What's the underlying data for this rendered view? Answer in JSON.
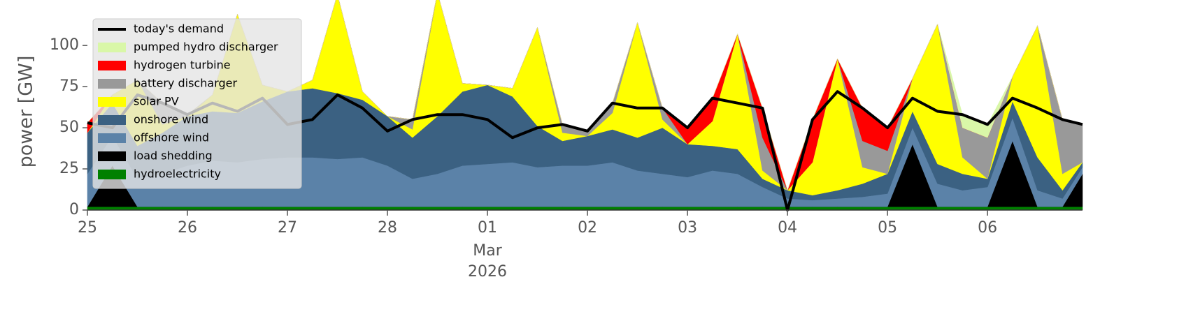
{
  "chart_data": {
    "type": "stacked_area",
    "ylabel": "power [GW]",
    "x": [
      0,
      0.25,
      0.5,
      0.75,
      1,
      1.25,
      1.5,
      1.75,
      2,
      2.25,
      2.5,
      2.75,
      3,
      3.25,
      3.5,
      3.75,
      4,
      4.25,
      4.5,
      4.75,
      5,
      5.25,
      5.5,
      5.75,
      6,
      6.25,
      6.5,
      6.75,
      7,
      7.25,
      7.5,
      7.75,
      8,
      8.25,
      8.5,
      8.75,
      9,
      9.25,
      9.5,
      9.75,
      9.95
    ],
    "xlim": [
      0,
      9.95
    ],
    "xticks": [
      {
        "value": 0,
        "label": "25"
      },
      {
        "value": 1,
        "label": "26"
      },
      {
        "value": 2,
        "label": "27"
      },
      {
        "value": 3,
        "label": "28"
      },
      {
        "value": 4,
        "label": "01"
      },
      {
        "value": 5,
        "label": "02"
      },
      {
        "value": 6,
        "label": "03"
      },
      {
        "value": 7,
        "label": "04"
      },
      {
        "value": 8,
        "label": "05"
      },
      {
        "value": 9,
        "label": "06"
      }
    ],
    "xtick_sublabels": [
      "Mar",
      "2026"
    ],
    "ylim": [
      0,
      120
    ],
    "yticks": [
      0,
      25,
      50,
      75,
      100
    ],
    "legend": "upper left",
    "line_series": {
      "name": "today's demand",
      "color": "#000000",
      "values": [
        53,
        50,
        70,
        65,
        58,
        65,
        60,
        68,
        52,
        55,
        70,
        62,
        48,
        55,
        58,
        58,
        55,
        44,
        50,
        52,
        48,
        65,
        62,
        62,
        50,
        68,
        65,
        62,
        0,
        55,
        72,
        62,
        50,
        68,
        60,
        58,
        52,
        68,
        62,
        55,
        52
      ]
    },
    "series": [
      {
        "name": "hydroelectricity",
        "color": "#008000",
        "values": [
          2,
          2,
          2,
          2,
          2,
          2,
          2,
          2,
          2,
          2,
          2,
          2,
          2,
          2,
          2,
          2,
          2,
          2,
          2,
          2,
          2,
          2,
          2,
          2,
          2,
          2,
          2,
          2,
          2,
          2,
          2,
          2,
          2,
          2,
          2,
          2,
          2,
          2,
          2,
          2,
          2
        ]
      },
      {
        "name": "load shedding",
        "color": "#000000",
        "values": [
          0,
          25,
          0,
          0,
          0,
          0,
          0,
          0,
          0,
          0,
          0,
          0,
          0,
          0,
          0,
          0,
          0,
          0,
          0,
          0,
          0,
          0,
          0,
          0,
          0,
          0,
          0,
          0,
          0,
          0,
          0,
          0,
          0,
          38,
          0,
          0,
          0,
          40,
          0,
          0,
          20
        ]
      },
      {
        "name": "offshore wind",
        "color": "#5b82a8",
        "values": [
          20,
          18,
          17,
          20,
          25,
          28,
          27,
          29,
          30,
          30,
          29,
          30,
          25,
          17,
          20,
          25,
          26,
          27,
          24,
          25,
          25,
          27,
          22,
          20,
          18,
          22,
          20,
          12,
          5,
          4,
          5,
          6,
          8,
          10,
          14,
          10,
          12,
          14,
          10,
          5,
          4
        ]
      },
      {
        "name": "onshore wind",
        "color": "#3b6182",
        "values": [
          25,
          20,
          20,
          25,
          30,
          30,
          30,
          35,
          40,
          42,
          40,
          35,
          30,
          25,
          35,
          45,
          48,
          40,
          25,
          15,
          18,
          20,
          20,
          28,
          20,
          15,
          15,
          5,
          5,
          3,
          5,
          8,
          12,
          10,
          12,
          10,
          5,
          10,
          20,
          5,
          3
        ]
      },
      {
        "name": "solar PV",
        "color": "#ffff00",
        "values": [
          0,
          5,
          40,
          5,
          0,
          10,
          60,
          10,
          0,
          5,
          60,
          5,
          0,
          5,
          75,
          5,
          0,
          5,
          60,
          5,
          0,
          10,
          70,
          5,
          0,
          15,
          70,
          5,
          0,
          20,
          80,
          10,
          0,
          20,
          85,
          10,
          0,
          15,
          80,
          10,
          0
        ]
      },
      {
        "name": "battery discharger",
        "color": "#999999",
        "values": [
          0,
          0,
          0,
          13,
          1,
          0,
          0,
          0,
          0,
          0,
          0,
          0,
          0,
          6,
          0,
          0,
          0,
          0,
          0,
          5,
          3,
          6,
          0,
          7,
          0,
          0,
          0,
          20,
          0,
          0,
          0,
          16,
          14,
          0,
          0,
          18,
          25,
          0,
          0,
          33,
          23
        ]
      },
      {
        "name": "hydrogen turbine",
        "color": "#ff0000",
        "values": [
          6,
          0,
          0,
          0,
          0,
          0,
          0,
          0,
          0,
          0,
          0,
          0,
          0,
          0,
          0,
          0,
          0,
          0,
          0,
          0,
          0,
          0,
          0,
          0,
          10,
          14,
          0,
          18,
          0,
          26,
          0,
          20,
          14,
          0,
          0,
          0,
          0,
          0,
          0,
          0,
          0
        ]
      },
      {
        "name": "pumped hydro discharger",
        "color": "#d9f7a8",
        "values": [
          0,
          0,
          0,
          0,
          0,
          0,
          0,
          0,
          0,
          0,
          0,
          0,
          0,
          0,
          0,
          0,
          0,
          0,
          0,
          0,
          0,
          0,
          0,
          0,
          0,
          0,
          0,
          0,
          0,
          0,
          0,
          0,
          0,
          0,
          0,
          8,
          8,
          0,
          0,
          0,
          0
        ]
      }
    ]
  }
}
